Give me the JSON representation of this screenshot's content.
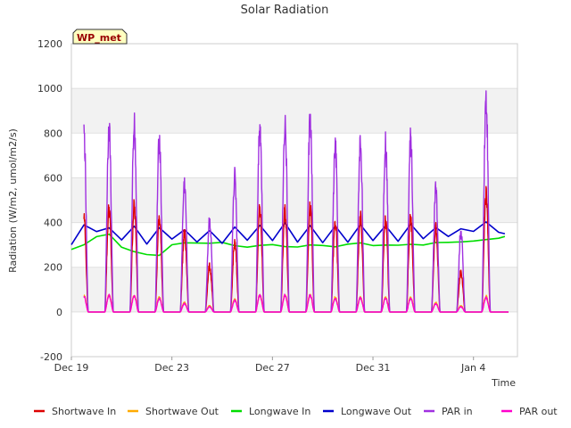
{
  "chart_data": {
    "type": "line",
    "title": "Solar Radiation",
    "xlabel": "Time",
    "ylabel": "Radiation (W/m2, umol/m2/s)",
    "station_badge": "WP_met",
    "ylim": [
      -200,
      1200
    ],
    "yticks": [
      -200,
      0,
      200,
      400,
      600,
      800,
      1000,
      1200
    ],
    "xlim": [
      "2023-12-19",
      "2024-01-05T18:00"
    ],
    "xticks": [
      {
        "date": "2023-12-19",
        "label": "Dec 19"
      },
      {
        "date": "2023-12-23",
        "label": "Dec 23"
      },
      {
        "date": "2023-12-27",
        "label": "Dec 27"
      },
      {
        "date": "2023-12-31",
        "label": "Dec 31"
      },
      {
        "date": "2024-01-04",
        "label": "Jan 4"
      }
    ],
    "grid": true,
    "legend_position": "bottom",
    "daily_peaks": {
      "days": [
        "2023-12-19",
        "2023-12-20",
        "2023-12-21",
        "2023-12-22",
        "2023-12-23",
        "2023-12-24",
        "2023-12-25",
        "2023-12-26",
        "2023-12-27",
        "2023-12-28",
        "2023-12-29",
        "2023-12-30",
        "2023-12-31",
        "2024-01-01",
        "2024-01-02",
        "2024-01-03",
        "2024-01-04",
        "2024-01-05"
      ],
      "noon_offset_days": 0.5
    },
    "series": [
      {
        "name": "Shortwave In",
        "color": "#dd0000",
        "kind": "diurnal",
        "peaks": [
          460,
          500,
          510,
          450,
          380,
          220,
          330,
          495,
          485,
          500,
          430,
          455,
          440,
          450,
          400,
          190,
          570,
          0
        ]
      },
      {
        "name": "Shortwave Out",
        "color": "#ffaa00",
        "kind": "diurnal",
        "peaks": [
          80,
          80,
          80,
          70,
          45,
          30,
          60,
          80,
          80,
          80,
          70,
          70,
          70,
          70,
          45,
          30,
          75,
          0
        ]
      },
      {
        "name": "Longwave In",
        "color": "#00dd00",
        "kind": "baseline",
        "x": [
          "2023-12-19",
          "2023-12-19T12:00",
          "2023-12-20",
          "2023-12-20T12:00",
          "2023-12-21",
          "2023-12-21T12:00",
          "2023-12-22",
          "2023-12-22T12:00",
          "2023-12-23",
          "2023-12-23T12:00",
          "2023-12-24",
          "2023-12-24T12:00",
          "2023-12-25",
          "2023-12-25T12:00",
          "2023-12-26",
          "2023-12-26T12:00",
          "2023-12-27",
          "2023-12-27T12:00",
          "2023-12-28",
          "2023-12-28T12:00",
          "2023-12-29",
          "2023-12-29T12:00",
          "2023-12-30",
          "2023-12-30T12:00",
          "2023-12-31",
          "2023-12-31T12:00",
          "2024-01-01",
          "2024-01-01T12:00",
          "2024-01-02",
          "2024-01-02T12:00",
          "2024-01-03",
          "2024-01-03T12:00",
          "2024-01-04",
          "2024-01-04T12:00",
          "2024-01-05",
          "2024-01-05T06:00"
        ],
        "values": [
          280,
          300,
          340,
          350,
          290,
          270,
          260,
          250,
          300,
          310,
          310,
          305,
          310,
          300,
          290,
          300,
          300,
          295,
          290,
          300,
          300,
          295,
          300,
          305,
          300,
          300,
          295,
          305,
          300,
          310,
          310,
          315,
          320,
          320,
          330,
          340
        ]
      },
      {
        "name": "Longwave Out",
        "color": "#0000cc",
        "kind": "baseline",
        "x": [
          "2023-12-19",
          "2023-12-19T12:00",
          "2023-12-20",
          "2023-12-20T12:00",
          "2023-12-21",
          "2023-12-21T12:00",
          "2023-12-22",
          "2023-12-22T12:00",
          "2023-12-23",
          "2023-12-23T12:00",
          "2023-12-24",
          "2023-12-24T12:00",
          "2023-12-25",
          "2023-12-25T12:00",
          "2023-12-26",
          "2023-12-26T12:00",
          "2023-12-27",
          "2023-12-27T12:00",
          "2023-12-28",
          "2023-12-28T12:00",
          "2023-12-29",
          "2023-12-29T12:00",
          "2023-12-30",
          "2023-12-30T12:00",
          "2023-12-31",
          "2023-12-31T12:00",
          "2024-01-01",
          "2024-01-01T12:00",
          "2024-01-02",
          "2024-01-02T12:00",
          "2024-01-03",
          "2024-01-03T12:00",
          "2024-01-04",
          "2024-01-04T12:00",
          "2024-01-05",
          "2024-01-05T06:00"
        ],
        "values": [
          305,
          390,
          360,
          380,
          320,
          385,
          300,
          380,
          330,
          370,
          310,
          360,
          310,
          380,
          320,
          390,
          320,
          400,
          310,
          390,
          310,
          385,
          310,
          390,
          320,
          390,
          320,
          395,
          330,
          380,
          340,
          370,
          360,
          400,
          360,
          350
        ]
      },
      {
        "name": "PAR in",
        "color": "#a030e0",
        "kind": "diurnal",
        "peaks": [
          860,
          900,
          910,
          830,
          620,
          445,
          655,
          915,
          910,
          930,
          800,
          820,
          815,
          830,
          590,
          385,
          1025,
          0
        ]
      },
      {
        "name": "PAR out",
        "color": "#ff00cc",
        "kind": "diurnal",
        "peaks": [
          75,
          80,
          78,
          65,
          40,
          25,
          55,
          80,
          80,
          80,
          65,
          68,
          65,
          65,
          40,
          25,
          70,
          0
        ]
      }
    ]
  }
}
